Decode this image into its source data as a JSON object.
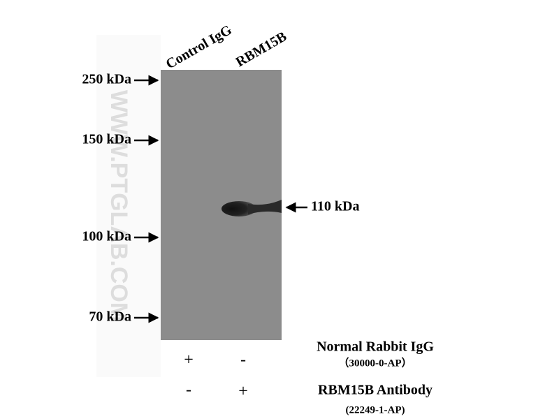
{
  "lanes": [
    "Control IgG",
    "RBM15B"
  ],
  "markers": [
    "250 kDa",
    "150 kDa",
    "100 kDa",
    "70 kDa"
  ],
  "band_label": "110 kDa",
  "watermark": "WWW.PTGLAB.COM",
  "conditions": [
    {
      "name": "Normal Rabbit IgG",
      "catalog": "（30000-0-AP）",
      "signs": [
        "+",
        "-"
      ]
    },
    {
      "name": "RBM15B Antibody",
      "catalog": "(22249-1-AP)",
      "signs": [
        "-",
        "+"
      ]
    }
  ]
}
